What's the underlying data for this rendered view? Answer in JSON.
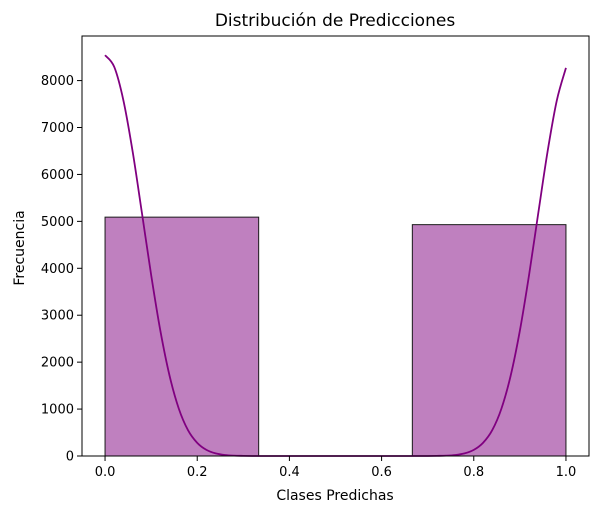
{
  "chart_data": {
    "type": "bar",
    "title": "Distribución de Predicciones",
    "xlabel": "Clases Predichas",
    "ylabel": "Frecuencia",
    "xlim": [
      -0.05,
      1.05
    ],
    "ylim": [
      0,
      8950
    ],
    "xticks": [
      0.0,
      0.2,
      0.4,
      0.6,
      0.8,
      1.0
    ],
    "xtick_labels": [
      "0.0",
      "0.2",
      "0.4",
      "0.6",
      "0.8",
      "1.0"
    ],
    "yticks": [
      0,
      1000,
      2000,
      3000,
      4000,
      5000,
      6000,
      7000,
      8000
    ],
    "ytick_labels": [
      "0",
      "1000",
      "2000",
      "3000",
      "4000",
      "5000",
      "6000",
      "7000",
      "8000"
    ],
    "bars": [
      {
        "x0": 0.0,
        "x1": 0.3333,
        "value": 5090
      },
      {
        "x0": 0.3333,
        "x1": 0.6667,
        "value": 0
      },
      {
        "x0": 0.6667,
        "x1": 1.0,
        "value": 4930
      }
    ],
    "kde": {
      "x": [
        0.0,
        0.02,
        0.04,
        0.06,
        0.08,
        0.1,
        0.12,
        0.14,
        0.16,
        0.18,
        0.2,
        0.22,
        0.24,
        0.26,
        0.28,
        0.3,
        0.32,
        0.34,
        0.36,
        0.38,
        0.4,
        0.42,
        0.44,
        0.46,
        0.48,
        0.5,
        0.52,
        0.54,
        0.56,
        0.58,
        0.6,
        0.62,
        0.64,
        0.66,
        0.68,
        0.7,
        0.72,
        0.74,
        0.76,
        0.78,
        0.8,
        0.82,
        0.84,
        0.86,
        0.88,
        0.9,
        0.92,
        0.94,
        0.96,
        0.98,
        1.0
      ],
      "y": [
        8540,
        8290,
        7570,
        6480,
        5180,
        3860,
        2670,
        1710,
        1010,
        550,
        280,
        130,
        56,
        22,
        8,
        3,
        0,
        0,
        0,
        0,
        0,
        0,
        0,
        0,
        0,
        0,
        0,
        0,
        0,
        0,
        0,
        0,
        0,
        0,
        0,
        0,
        3,
        8,
        22,
        56,
        130,
        280,
        550,
        1010,
        1710,
        2670,
        3860,
        5180,
        6480,
        7570,
        8270
      ]
    },
    "bar_fill": "#bf80bf",
    "bar_edge": "#1a1a1a",
    "line_color": "#800080",
    "grid": false,
    "legend": "none"
  }
}
